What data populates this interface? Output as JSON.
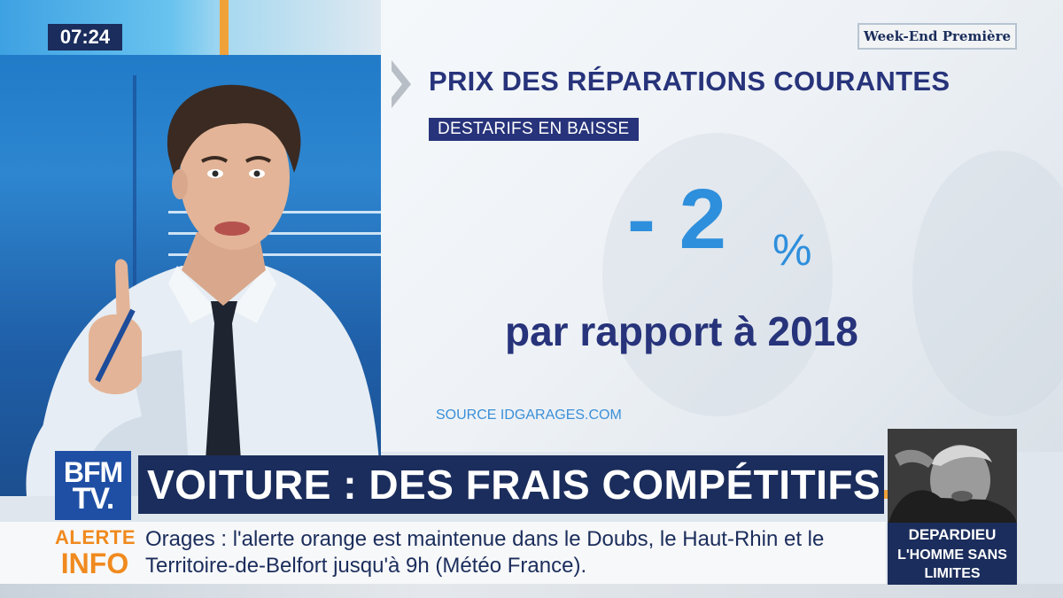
{
  "clock": {
    "time": "07:24"
  },
  "show": {
    "name": "Week-End Première"
  },
  "graphic": {
    "headline": "PRIX DES RÉPARATIONS COURANTES",
    "tag": "DESTARIFS EN BAISSE",
    "value": "- 2",
    "unit": "%",
    "comparison": "par rapport à 2018",
    "source": "SOURCE IDGARAGES.COM"
  },
  "channel": {
    "logo_line1": "BFM",
    "logo_line2": "TV."
  },
  "bandeau": {
    "title": "VOITURE : DES FRAIS COMPÉTITIFS"
  },
  "ticker": {
    "label_line1": "ALERTE",
    "label_line2": "INFO",
    "text": "Orages : l'alerte orange est maintenue dans le Doubs, le Haut-Rhin et le Territoire-de-Belfort jusqu'à 9h (Météo France)."
  },
  "teaser": {
    "title": "DEPARDIEU",
    "subtitle": "L'HOMME SANS LIMITES"
  },
  "colors": {
    "navy": "#1b2d5c",
    "headline_navy": "#27337a",
    "accent_blue": "#2e8fdc",
    "alert_orange": "#f08a1e",
    "brand_blue": "#1f4fa4"
  }
}
